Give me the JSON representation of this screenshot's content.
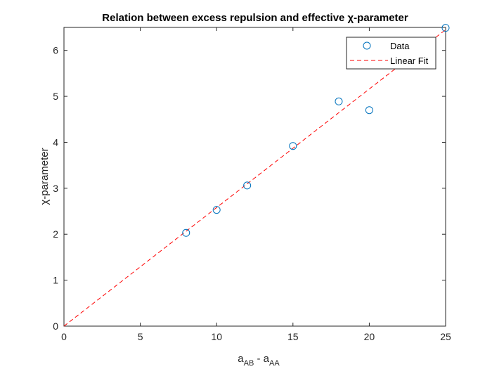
{
  "chart_data": {
    "type": "scatter",
    "title": "Relation between excess repulsion and effective χ-parameter",
    "xlabel": {
      "main": "a",
      "sub1": "AB",
      "sep": " - a",
      "sub2": "AA"
    },
    "ylabel": "χ-parameter",
    "xlim": [
      0,
      25
    ],
    "ylim": [
      0,
      6.5
    ],
    "xticks": [
      "0",
      "5",
      "10",
      "15",
      "20",
      "25"
    ],
    "yticks": [
      "0",
      "1",
      "2",
      "3",
      "4",
      "5",
      "6"
    ],
    "grid": false,
    "legend_position": "top-right",
    "series": [
      {
        "name": "Data",
        "kind": "markers",
        "color": "#0072BD",
        "x": [
          8,
          10,
          12,
          15,
          18,
          20,
          25
        ],
        "y": [
          2.03,
          2.53,
          3.06,
          3.92,
          4.89,
          4.7,
          6.49
        ]
      },
      {
        "name": "Linear Fit",
        "kind": "dashed-line",
        "color": "#FF0000",
        "x": [
          0,
          25
        ],
        "y": [
          0,
          6.45
        ]
      }
    ]
  }
}
